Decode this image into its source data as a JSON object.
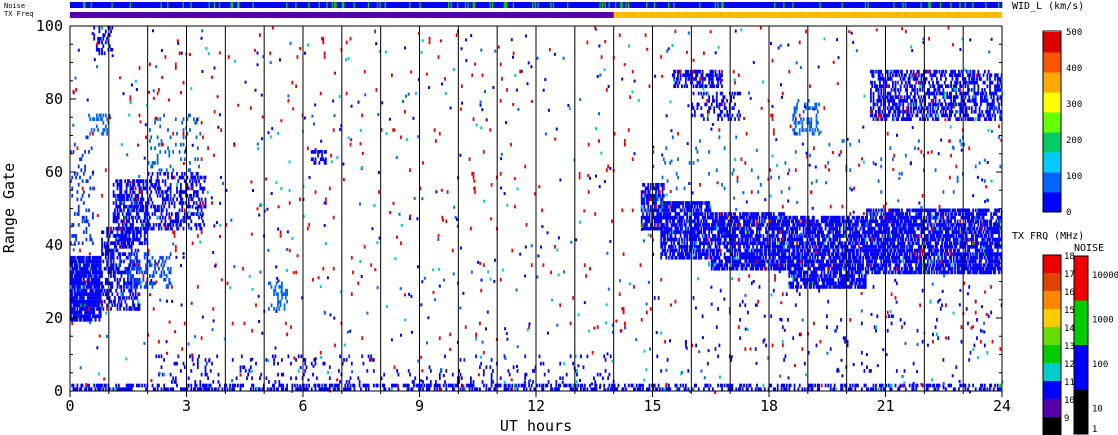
{
  "chart_data": {
    "type": "scatter",
    "xlabel": "UT hours",
    "ylabel": "Range Gate",
    "xlim": [
      0,
      24
    ],
    "ylim": [
      0,
      100
    ],
    "x_ticks": [
      0,
      3,
      6,
      9,
      12,
      15,
      18,
      21,
      24
    ],
    "y_ticks": [
      0,
      20,
      40,
      60,
      80,
      100
    ],
    "grid": "vertical lines every 1 hour",
    "top_bars": [
      {
        "label": "Noise",
        "colors": [
          "#0000ff",
          "#00cc00"
        ]
      },
      {
        "label": "TX Freq",
        "colors": [
          "#5500aa",
          "#ffcc00"
        ],
        "change_hour": 14.0
      }
    ],
    "colorbars": [
      {
        "title": "WID_L (km/s)",
        "ticks": [
          "500",
          "400",
          "300",
          "200",
          "100",
          "0"
        ]
      },
      {
        "title": "TX FRQ (MHz)",
        "ticks": [
          "18",
          "17",
          "16",
          "15",
          "14",
          "13",
          "12",
          "11",
          "10",
          "9"
        ]
      },
      {
        "title": "NOISE",
        "ticks": [
          "10000",
          "1000",
          "100",
          "10",
          "1"
        ]
      }
    ],
    "scatter_regions": [
      {
        "x": [
          0.0,
          0.8
        ],
        "y": [
          19,
          37
        ],
        "density": 0.85,
        "color": "#0000ff"
      },
      {
        "x": [
          0.0,
          0.6
        ],
        "y": [
          40,
          70
        ],
        "density": 0.12,
        "color": "#0033ff"
      },
      {
        "x": [
          0.4,
          1.0
        ],
        "y": [
          70,
          76
        ],
        "density": 0.25,
        "color": "#0066ff"
      },
      {
        "x": [
          0.6,
          1.1
        ],
        "y": [
          92,
          100
        ],
        "density": 0.3,
        "color": "#0000ff"
      },
      {
        "x": [
          0.8,
          1.8
        ],
        "y": [
          22,
          45
        ],
        "density": 0.45,
        "color": "#0000ff"
      },
      {
        "x": [
          1.1,
          2.0
        ],
        "y": [
          40,
          58
        ],
        "density": 0.55,
        "color": "#0000ff"
      },
      {
        "x": [
          2.0,
          3.5
        ],
        "y": [
          44,
          60
        ],
        "density": 0.35,
        "color": "#0000ff"
      },
      {
        "x": [
          1.4,
          2.6
        ],
        "y": [
          28,
          38
        ],
        "density": 0.3,
        "color": "#0044ff"
      },
      {
        "x": [
          2.0,
          3.4
        ],
        "y": [
          60,
          76
        ],
        "density": 0.08,
        "color": "#0066cc"
      },
      {
        "x": [
          6.2,
          6.6
        ],
        "y": [
          62,
          66
        ],
        "density": 0.6,
        "color": "#0000ff"
      },
      {
        "x": [
          5.1,
          5.6
        ],
        "y": [
          22,
          30
        ],
        "density": 0.3,
        "color": "#0066ff"
      },
      {
        "x": [
          0.0,
          24.0
        ],
        "y": [
          0,
          2
        ],
        "density": 0.45,
        "color": "#0000ff"
      },
      {
        "x": [
          2.0,
          14.0
        ],
        "y": [
          2,
          10
        ],
        "density": 0.07,
        "color": "#0000ff"
      },
      {
        "x": [
          14.7,
          15.3
        ],
        "y": [
          44,
          57
        ],
        "density": 0.7,
        "color": "#0000ff"
      },
      {
        "x": [
          15.2,
          16.5
        ],
        "y": [
          36,
          52
        ],
        "density": 0.7,
        "color": "#0000ff"
      },
      {
        "x": [
          16.5,
          18.5
        ],
        "y": [
          33,
          49
        ],
        "density": 0.72,
        "color": "#0000ff"
      },
      {
        "x": [
          18.5,
          20.5
        ],
        "y": [
          28,
          48
        ],
        "density": 0.72,
        "color": "#0000ff"
      },
      {
        "x": [
          20.5,
          24.0
        ],
        "y": [
          32,
          50
        ],
        "density": 0.72,
        "color": "#0000ff"
      },
      {
        "x": [
          15.5,
          16.8
        ],
        "y": [
          83,
          88
        ],
        "density": 0.55,
        "color": "#0000ff"
      },
      {
        "x": [
          16.0,
          17.3
        ],
        "y": [
          74,
          82
        ],
        "density": 0.25,
        "color": "#0000ff"
      },
      {
        "x": [
          18.6,
          19.3
        ],
        "y": [
          70,
          80
        ],
        "density": 0.3,
        "color": "#0066ff"
      },
      {
        "x": [
          20.6,
          24.0
        ],
        "y": [
          74,
          88
        ],
        "density": 0.5,
        "color": "#0000ff"
      },
      {
        "x": [
          15.0,
          24.0
        ],
        "y": [
          54,
          70
        ],
        "density": 0.02,
        "color": "#0066ff"
      },
      {
        "x": [
          15.0,
          24.0
        ],
        "y": [
          5,
          30
        ],
        "density": 0.015,
        "color": "#0000ff"
      },
      {
        "x": [
          0.0,
          24.0
        ],
        "y": [
          10,
          100
        ],
        "density": 0.006,
        "color": "#ee0000"
      }
    ]
  }
}
